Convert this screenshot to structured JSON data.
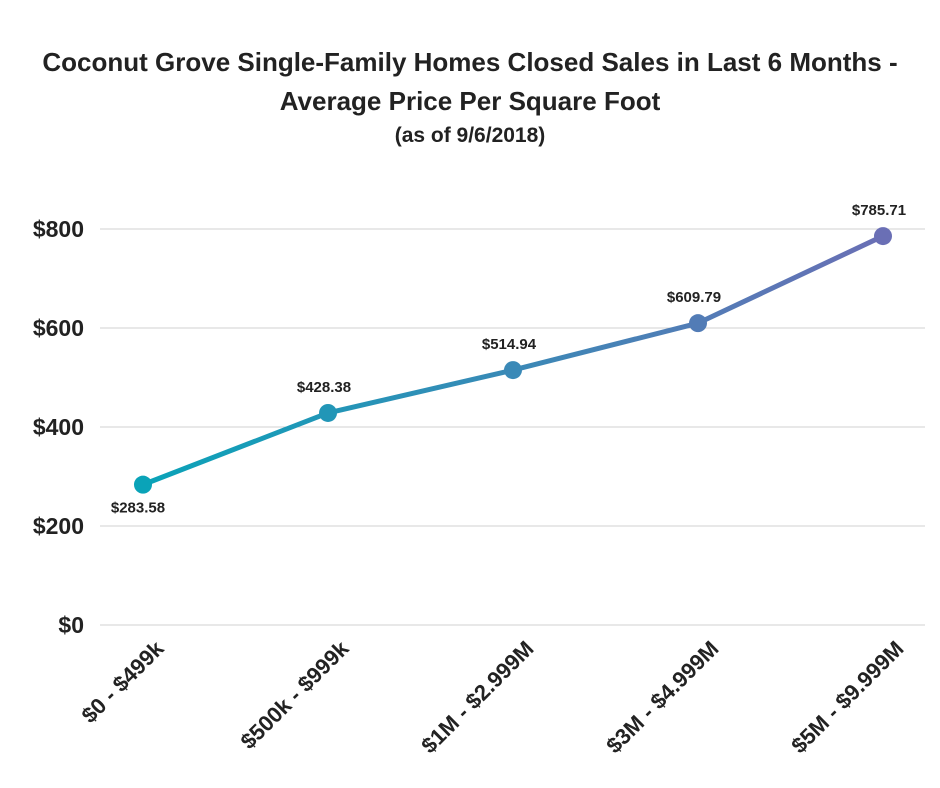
{
  "chart_data": {
    "type": "line",
    "title_line1": "Coconut Grove Single-Family Homes Closed Sales in Last 6 Months -",
    "title_line2": "Average Price Per Square Foot",
    "subtitle": "(as of 9/6/2018)",
    "xlabel": "",
    "ylabel": "",
    "categories": [
      "$0 - $499k",
      "$500k - $999k",
      "$1M - $2.999M",
      "$3M - $4.999M",
      "$5M - $9.999M"
    ],
    "values": [
      283.58,
      428.38,
      514.94,
      609.79,
      785.71
    ],
    "data_labels": [
      "$283.58",
      "$428.38",
      "$514.94",
      "$609.79",
      "$785.71"
    ],
    "ylim": [
      0,
      800
    ],
    "yticks": [
      0,
      200,
      400,
      600,
      800
    ],
    "ytick_labels": [
      "$0",
      "$200",
      "$400",
      "$600",
      "$800"
    ],
    "grid": true,
    "legend": "none",
    "colors": {
      "line_start": "#0aa3b8",
      "line_end": "#6a6fb5",
      "grid": "#d0d0d0",
      "text": "#222222"
    }
  }
}
